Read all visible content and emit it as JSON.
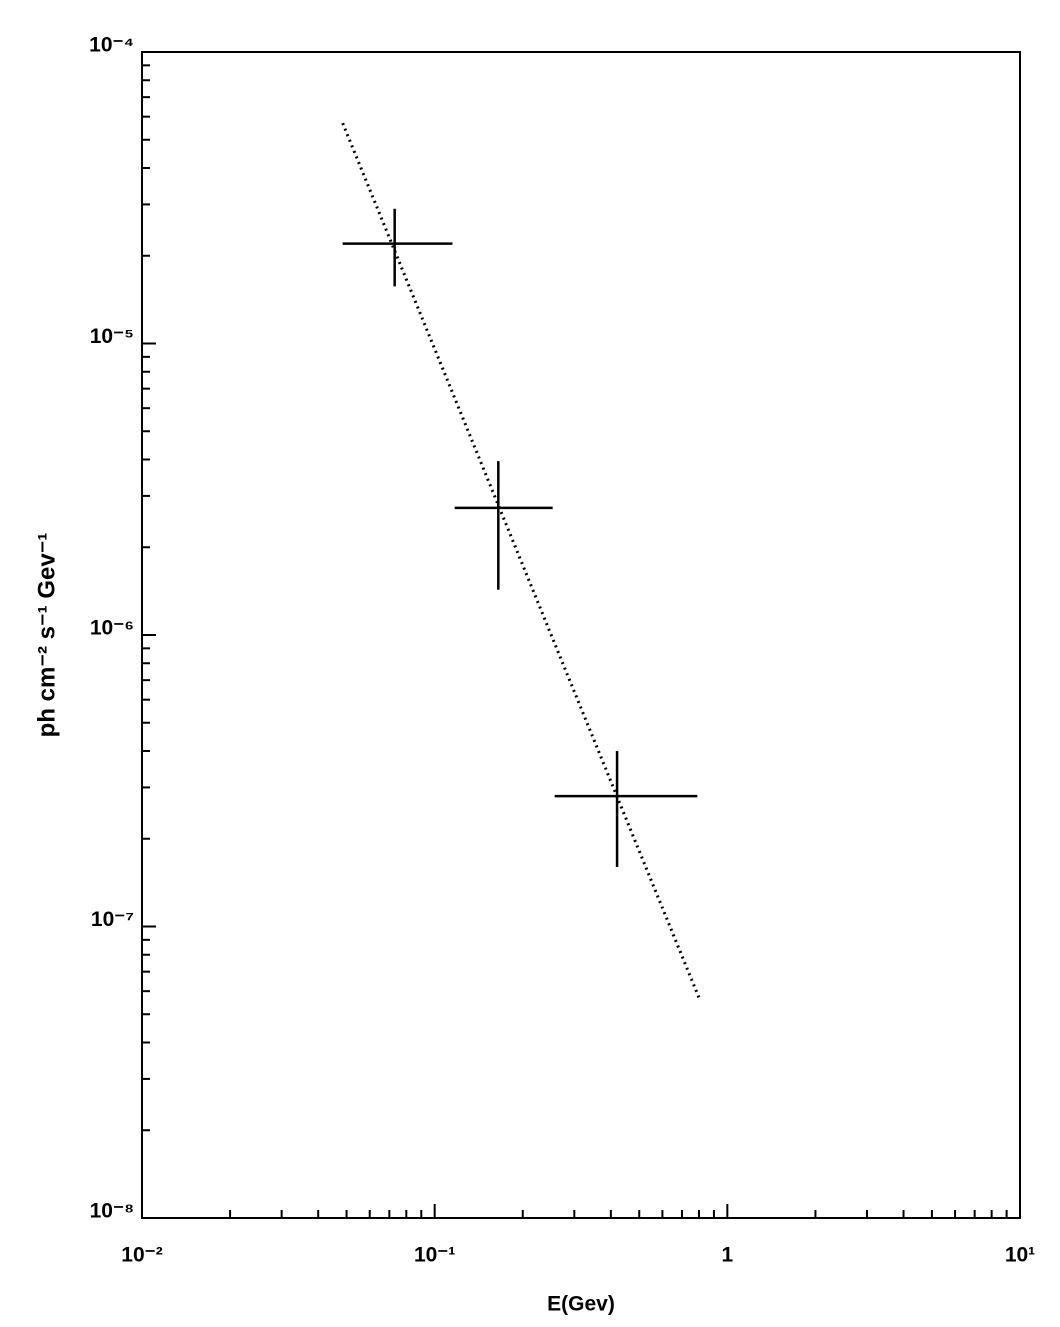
{
  "chart_data": {
    "type": "errorbar-loglog",
    "x_label": "E(Gev)",
    "y_label": "ph cm⁻² s⁻¹ Gev⁻¹",
    "xscale": "log",
    "yscale": "log",
    "xlim": [
      0.01,
      10
    ],
    "ylim": [
      1e-08,
      0.0001
    ],
    "xticks": [
      {
        "value": 0.01,
        "label": "10⁻²"
      },
      {
        "value": 0.1,
        "label": "10⁻¹"
      },
      1,
      {
        "value": 10,
        "label": "10¹"
      }
    ],
    "yticks": [
      {
        "value": 1e-08,
        "label": "10⁻⁸"
      },
      {
        "value": 1e-07,
        "label": "10⁻⁷"
      },
      {
        "value": 1e-06,
        "label": "10⁻⁶"
      },
      {
        "value": 1e-05,
        "label": "10⁻⁵"
      },
      {
        "value": 0.0001,
        "label": "10⁻⁴"
      }
    ],
    "xminorticks": [
      0.02,
      0.03,
      0.04,
      0.05,
      0.06,
      0.07,
      0.08,
      0.09,
      0.2,
      0.3,
      0.4,
      0.5,
      0.6,
      0.7,
      0.8,
      0.9,
      2,
      3,
      4,
      5,
      6,
      7,
      8,
      9
    ],
    "yminorticks": [
      2e-08,
      3e-08,
      4e-08,
      5e-08,
      6e-08,
      7e-08,
      8e-08,
      9e-08,
      2e-07,
      3e-07,
      4e-07,
      5e-07,
      6e-07,
      7e-07,
      8e-07,
      9e-07,
      2e-06,
      3e-06,
      4e-06,
      5e-06,
      6e-06,
      7e-06,
      8e-06,
      9e-06,
      2e-05,
      3e-05,
      4e-05,
      5e-05,
      6e-05,
      7e-05,
      8e-05,
      9e-05
    ],
    "points": {
      "color": "#000000",
      "x": [
        0.073,
        0.165,
        0.42
      ],
      "values": [
        2.2e-05,
        2.73e-06,
        2.8e-07
      ],
      "x_low": [
        0.0485,
        0.117,
        0.257
      ],
      "x_high": [
        0.115,
        0.253,
        0.79
      ],
      "y_low": [
        1.57e-05,
        1.43e-06,
        1.6e-07
      ],
      "y_high": [
        2.9e-05,
        3.95e-06,
        4e-07
      ]
    },
    "fit": {
      "color": "#000000",
      "style": "dotted",
      "x": [
        0.0485,
        0.8
      ],
      "values": [
        5.7e-05,
        5.7e-08
      ]
    }
  }
}
